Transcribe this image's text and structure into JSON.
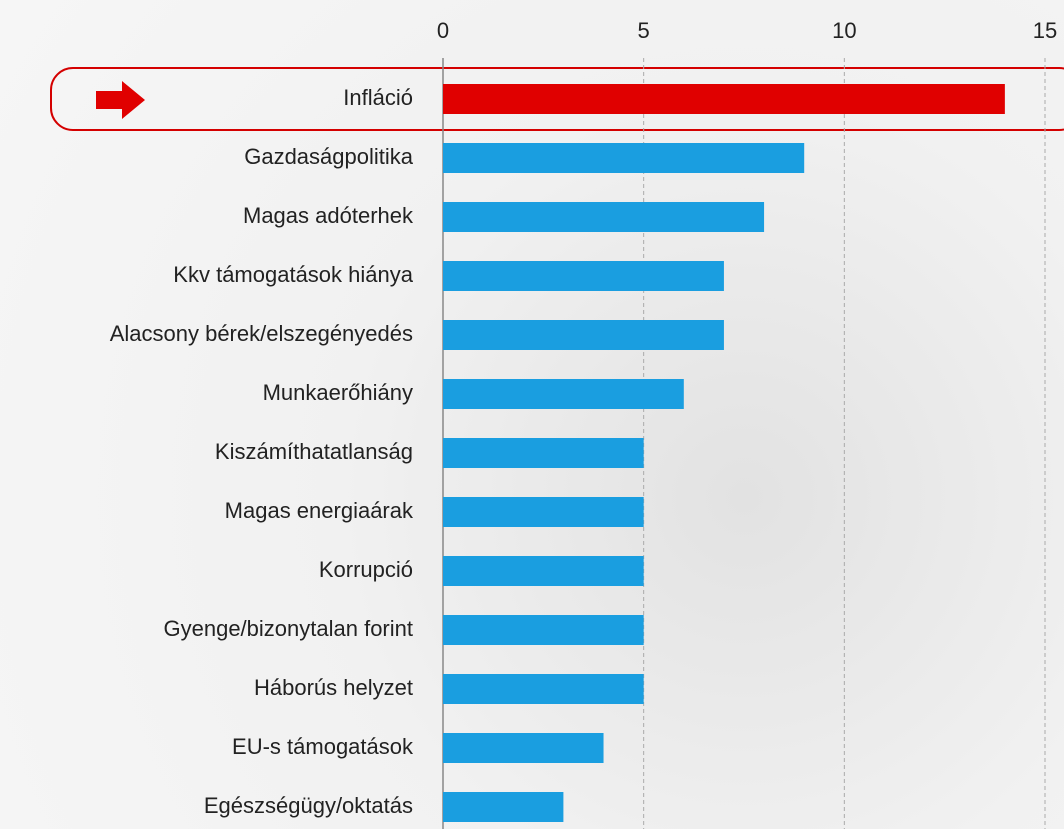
{
  "chart_data": {
    "type": "bar",
    "orientation": "horizontal",
    "categories": [
      "Infláció",
      "Gazdaságpolitika",
      "Magas adóterhek",
      "Kkv támogatások hiánya",
      "Alacsony bérek/elszegényedés",
      "Munkaerőhiány",
      "Kiszámíthatatlanság",
      "Magas energiaárak",
      "Korrupció",
      "Gyenge/bizonytalan forint",
      "Háborús helyzet",
      "EU-s támogatások",
      "Egészségügy/oktatás"
    ],
    "values": [
      14,
      9,
      8,
      7,
      7,
      6,
      5,
      5,
      5,
      5,
      5,
      4,
      3
    ],
    "colors": [
      "#e00000",
      "#1a9ee0",
      "#1a9ee0",
      "#1a9ee0",
      "#1a9ee0",
      "#1a9ee0",
      "#1a9ee0",
      "#1a9ee0",
      "#1a9ee0",
      "#1a9ee0",
      "#1a9ee0",
      "#1a9ee0",
      "#1a9ee0"
    ],
    "xlim": [
      0,
      15
    ],
    "xticks": [
      0,
      5,
      10,
      15
    ],
    "grid": true
  }
}
